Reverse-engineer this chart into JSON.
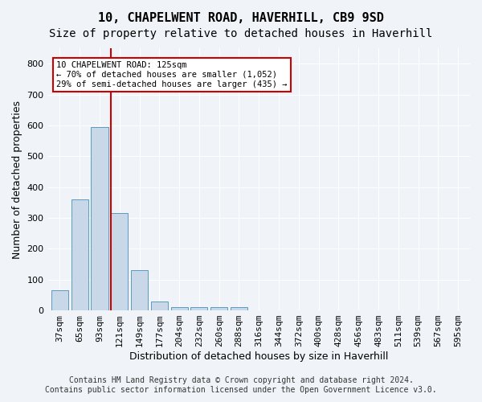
{
  "title_line1": "10, CHAPELWENT ROAD, HAVERHILL, CB9 9SD",
  "title_line2": "Size of property relative to detached houses in Haverhill",
  "xlabel": "Distribution of detached houses by size in Haverhill",
  "ylabel": "Number of detached properties",
  "footer_line1": "Contains HM Land Registry data © Crown copyright and database right 2024.",
  "footer_line2": "Contains public sector information licensed under the Open Government Licence v3.0.",
  "bar_labels": [
    "37sqm",
    "65sqm",
    "93sqm",
    "121sqm",
    "149sqm",
    "177sqm",
    "204sqm",
    "232sqm",
    "260sqm",
    "288sqm",
    "316sqm",
    "344sqm",
    "372sqm",
    "400sqm",
    "428sqm",
    "456sqm",
    "483sqm",
    "511sqm",
    "539sqm",
    "567sqm",
    "595sqm"
  ],
  "bar_values": [
    65,
    360,
    595,
    315,
    130,
    30,
    10,
    10,
    10,
    10,
    0,
    0,
    0,
    0,
    0,
    0,
    0,
    0,
    0,
    0,
    0
  ],
  "bar_color": "#c8d8e8",
  "bar_edge_color": "#5a9abf",
  "property_size": 125,
  "property_bin_index": 3,
  "vline_color": "#cc0000",
  "annotation_text_line1": "10 CHAPELWENT ROAD: 125sqm",
  "annotation_text_line2": "← 70% of detached houses are smaller (1,052)",
  "annotation_text_line3": "29% of semi-detached houses are larger (435) →",
  "annotation_box_color": "#cc0000",
  "annotation_box_fill": "#ffffff",
  "ylim": [
    0,
    850
  ],
  "yticks": [
    0,
    100,
    200,
    300,
    400,
    500,
    600,
    700,
    800
  ],
  "background_color": "#f0f4f8",
  "grid_color": "#ffffff",
  "title1_fontsize": 11,
  "title2_fontsize": 10,
  "xlabel_fontsize": 9,
  "ylabel_fontsize": 9,
  "tick_fontsize": 8,
  "footer_fontsize": 7
}
